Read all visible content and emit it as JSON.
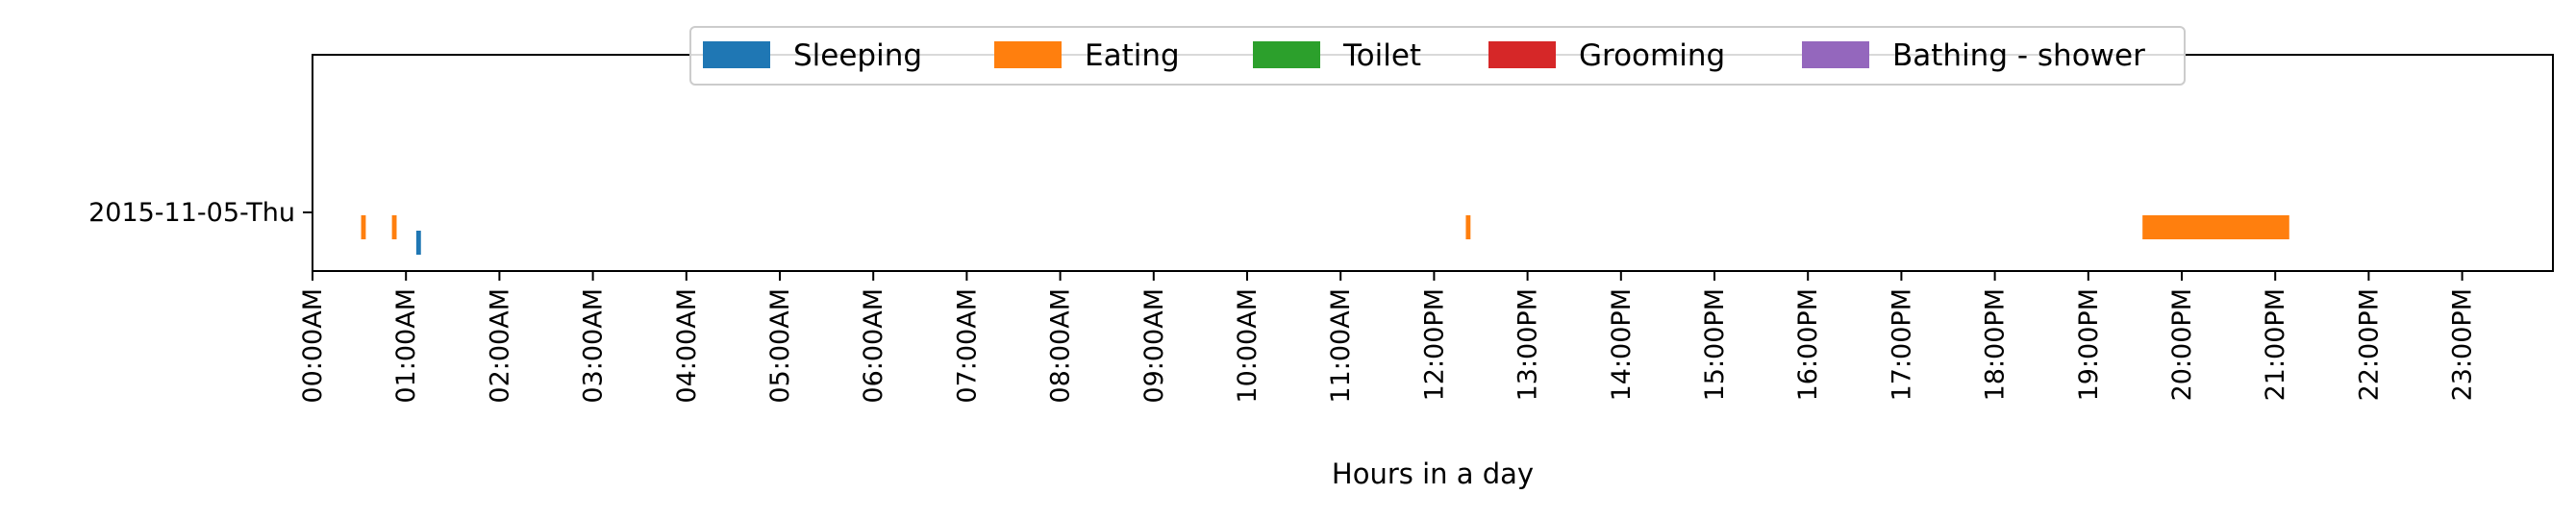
{
  "chart_data": {
    "type": "timeline",
    "xlabel": "Hours in a day",
    "xlim_hours": [
      0,
      24
    ],
    "x_ticks": [
      "00:00AM",
      "01:00AM",
      "02:00AM",
      "03:00AM",
      "04:00AM",
      "05:00AM",
      "06:00AM",
      "07:00AM",
      "08:00AM",
      "09:00AM",
      "10:00AM",
      "11:00AM",
      "12:00PM",
      "13:00PM",
      "14:00PM",
      "15:00PM",
      "16:00PM",
      "17:00PM",
      "18:00PM",
      "19:00PM",
      "20:00PM",
      "21:00PM",
      "22:00PM",
      "23:00PM"
    ],
    "rows": [
      "2015-11-05-Thu"
    ],
    "legend_position": "top-center",
    "series": [
      {
        "name": "Sleeping",
        "color": "#1f77b4",
        "lane": "lower",
        "intervals": [
          [
            1.11,
            1.16
          ]
        ]
      },
      {
        "name": "Eating",
        "color": "#ff7f0e",
        "lane": "upper",
        "intervals": [
          [
            0.52,
            0.57
          ],
          [
            0.85,
            0.9
          ],
          [
            12.34,
            12.39
          ],
          [
            19.58,
            21.15
          ]
        ]
      },
      {
        "name": "Toilet",
        "color": "#2ca02c",
        "lane": "upper",
        "intervals": []
      },
      {
        "name": "Grooming",
        "color": "#d62728",
        "lane": "upper",
        "intervals": []
      },
      {
        "name": "Bathing - shower",
        "color": "#9467bd",
        "lane": "upper",
        "intervals": []
      }
    ]
  }
}
